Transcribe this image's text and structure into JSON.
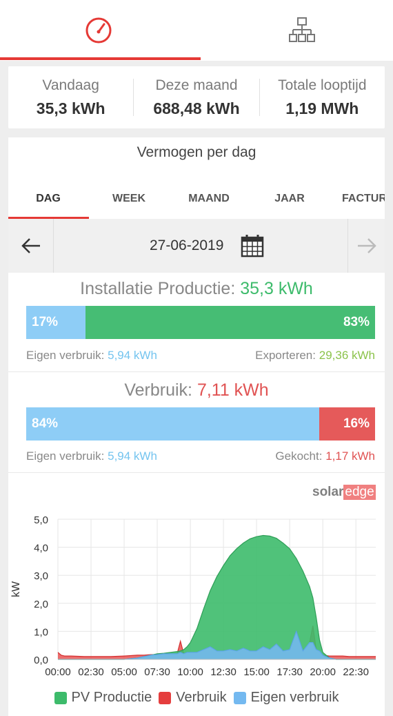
{
  "top_tabs": [
    {
      "name": "dashboard",
      "icon": "speedometer-icon",
      "active": true
    },
    {
      "name": "layout",
      "icon": "sitemap-icon",
      "active": false
    }
  ],
  "summary": [
    {
      "label": "Vandaag",
      "value": "35,3 kWh"
    },
    {
      "label": "Deze maand",
      "value": "688,48 kWh"
    },
    {
      "label": "Totale looptijd",
      "value": "1,19 MWh"
    }
  ],
  "card": {
    "title": "Vermogen per dag",
    "tabs": [
      "DAG",
      "WEEK",
      "MAAND",
      "JAAR",
      "FACTURE"
    ],
    "active_tab": "DAG",
    "date": "27-06-2019"
  },
  "production": {
    "label": "Installatie Productie:",
    "value": "35,3 kWh",
    "self_pct": "17%",
    "export_pct": "83%",
    "self_fraction": 0.17,
    "self_label": "Eigen verbruik:",
    "self_value": "5,94 kWh",
    "export_label": "Exporteren:",
    "export_value": "29,36 kWh"
  },
  "consumption": {
    "label": "Verbruik:",
    "value": "7,11 kWh",
    "self_pct": "84%",
    "bought_pct": "16%",
    "self_fraction": 0.84,
    "self_label": "Eigen verbruik:",
    "self_value": "5,94 kWh",
    "bought_label": "Gekocht:",
    "bought_value": "1,17 kWh"
  },
  "logo": {
    "solar": "solar",
    "edge": "edge"
  },
  "colors": {
    "accent": "#e53935",
    "pv": "#3dbb6b",
    "consumption": "#e53e3e",
    "self": "#74b9f0"
  },
  "chart_data": {
    "type": "area",
    "ylabel": "kW",
    "ylim": [
      0,
      5
    ],
    "yticks": [
      "0,0",
      "1,0",
      "2,0",
      "3,0",
      "4,0",
      "5,0"
    ],
    "xticks": [
      "00:00",
      "02:30",
      "05:00",
      "07:30",
      "10:00",
      "12:30",
      "15:00",
      "17:30",
      "20:00",
      "22:30"
    ],
    "x_hours": [
      0,
      0.25,
      0.5,
      1,
      2,
      3,
      4,
      5,
      6,
      6.5,
      7,
      7.5,
      8,
      8.5,
      9,
      9.25,
      9.5,
      9.75,
      10,
      10.5,
      11,
      11.5,
      12,
      12.5,
      13,
      13.5,
      14,
      14.5,
      15,
      15.5,
      16,
      16.5,
      17,
      17.5,
      18,
      18.5,
      19,
      19.25,
      19.5,
      19.75,
      20,
      20.5,
      21,
      21.5,
      22,
      23,
      24
    ],
    "series": [
      {
        "name": "PV Productie",
        "values": [
          0,
          0,
          0,
          0,
          0,
          0,
          0,
          0,
          0.05,
          0.1,
          0.15,
          0.2,
          0.22,
          0.25,
          0.28,
          0.3,
          0.35,
          0.45,
          0.6,
          1.1,
          1.8,
          2.45,
          2.95,
          3.35,
          3.7,
          3.95,
          4.15,
          4.3,
          4.38,
          4.42,
          4.4,
          4.32,
          4.15,
          3.95,
          3.6,
          3.15,
          2.6,
          2.2,
          1.5,
          0.7,
          0.25,
          0.05,
          0,
          0,
          0,
          0,
          0
        ]
      },
      {
        "name": "Verbruik",
        "values": [
          0.25,
          0.15,
          0.12,
          0.12,
          0.1,
          0.1,
          0.1,
          0.12,
          0.15,
          0.15,
          0.17,
          0.17,
          0.2,
          0.2,
          0.2,
          0.65,
          0.2,
          0.25,
          0.25,
          0.25,
          0.35,
          0.45,
          0.3,
          0.3,
          0.35,
          0.3,
          0.4,
          0.3,
          0.3,
          0.45,
          0.35,
          0.55,
          0.3,
          0.35,
          1.0,
          0.3,
          0.6,
          1.2,
          0.35,
          0.3,
          0.15,
          0.12,
          0.12,
          0.12,
          0.1,
          0.1,
          0.1
        ]
      },
      {
        "name": "Eigen verbruik",
        "values": [
          0,
          0,
          0,
          0,
          0,
          0,
          0,
          0,
          0.05,
          0.1,
          0.15,
          0.17,
          0.2,
          0.2,
          0.2,
          0.25,
          0.2,
          0.25,
          0.25,
          0.25,
          0.35,
          0.45,
          0.3,
          0.3,
          0.35,
          0.3,
          0.4,
          0.3,
          0.3,
          0.45,
          0.35,
          0.55,
          0.3,
          0.35,
          1.0,
          0.3,
          0.6,
          0.6,
          0.35,
          0.3,
          0.15,
          0.05,
          0,
          0,
          0,
          0,
          0
        ]
      }
    ]
  }
}
